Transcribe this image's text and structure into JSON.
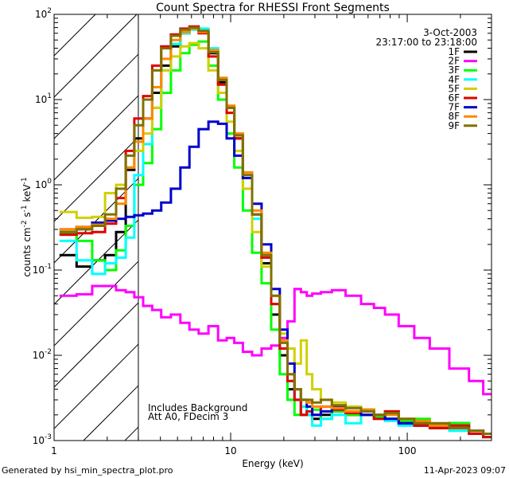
{
  "chart_data": {
    "type": "line",
    "title": "Count Spectra for RHESSI Front Segments",
    "xlabel": "Energy (keV)",
    "ylabel": {
      "base": "counts cm",
      "exp1": "-2",
      "mid1": " s",
      "exp2": "-1",
      "mid2": " keV",
      "exp3": "-1"
    },
    "x_scale": "log",
    "y_scale": "log",
    "xlim": [
      1,
      300
    ],
    "ylim": [
      0.001,
      100
    ],
    "x_ticks": [
      {
        "value": 1,
        "label": "1"
      },
      {
        "value": 10,
        "label": "10"
      },
      {
        "value": 100,
        "label": "100"
      }
    ],
    "y_ticks": [
      {
        "value": 0.001,
        "base": "10",
        "exp": "-3"
      },
      {
        "value": 0.01,
        "base": "10",
        "exp": "-2"
      },
      {
        "value": 0.1,
        "base": "10",
        "exp": "-1"
      },
      {
        "value": 1,
        "base": "10",
        "exp": "0"
      },
      {
        "value": 10,
        "base": "10",
        "exp": "1"
      },
      {
        "value": 100,
        "base": "10",
        "exp": "2"
      }
    ],
    "hatched_region": {
      "x_from": 1,
      "x_to": 3
    },
    "date": "3-Oct-2003",
    "time_range": "23:17:00 to 23:18:00",
    "annotations": [
      "Includes Background",
      "Att A0, FDecim 3"
    ],
    "series": [
      {
        "name": "1F",
        "color": "#000000",
        "x": [
          1.2,
          1.5,
          1.8,
          2.1,
          2.4,
          2.7,
          3.0,
          3.4,
          3.8,
          4.3,
          4.9,
          5.5,
          6.2,
          7.0,
          8.0,
          9.0,
          10,
          11,
          12.5,
          14,
          16,
          18,
          20,
          22,
          24,
          26,
          28,
          30,
          35,
          40,
          50,
          60,
          70,
          80,
          100,
          120,
          150,
          200,
          250,
          290
        ],
        "y": [
          0.15,
          0.11,
          0.13,
          0.15,
          0.28,
          1.5,
          3.5,
          6,
          12,
          25,
          42,
          60,
          70,
          62,
          35,
          16,
          8,
          3.5,
          1.2,
          0.45,
          0.12,
          0.03,
          0.01,
          0.004,
          0.003,
          0.002,
          0.002,
          0.0018,
          0.002,
          0.0022,
          0.002,
          0.0023,
          0.0019,
          0.0018,
          0.0016,
          0.0015,
          0.0015,
          0.0016,
          0.0013,
          0.0011
        ]
      },
      {
        "name": "2F",
        "color": "#ff00ff",
        "x": [
          1.2,
          1.5,
          1.8,
          2.1,
          2.4,
          2.7,
          3.0,
          3.4,
          3.8,
          4.3,
          4.9,
          5.5,
          6.2,
          7.0,
          8.0,
          9.0,
          10,
          11,
          12.5,
          14,
          16,
          18,
          20,
          22,
          24,
          26,
          28,
          30,
          35,
          40,
          50,
          60,
          70,
          80,
          100,
          120,
          150,
          200,
          250,
          290
        ],
        "y": [
          0.05,
          0.052,
          0.065,
          0.065,
          0.058,
          0.055,
          0.048,
          0.038,
          0.034,
          0.028,
          0.03,
          0.024,
          0.02,
          0.018,
          0.022,
          0.015,
          0.016,
          0.014,
          0.011,
          0.01,
          0.012,
          0.013,
          0.016,
          0.025,
          0.06,
          0.055,
          0.05,
          0.053,
          0.055,
          0.058,
          0.05,
          0.04,
          0.036,
          0.03,
          0.022,
          0.016,
          0.012,
          0.007,
          0.005,
          0.0035
        ]
      },
      {
        "name": "3F",
        "color": "#00ff00",
        "x": [
          1.2,
          1.5,
          1.8,
          2.1,
          2.4,
          2.7,
          3.0,
          3.4,
          3.8,
          4.3,
          4.9,
          5.5,
          6.2,
          7.0,
          8.0,
          9.0,
          10,
          11,
          12.5,
          14,
          16,
          18,
          20,
          22,
          24,
          26,
          28,
          30,
          35,
          40,
          50,
          60,
          70,
          80,
          100,
          120,
          150,
          200,
          250,
          290
        ],
        "y": [
          0.27,
          0.22,
          0.13,
          0.1,
          0.17,
          0.33,
          1.0,
          1.8,
          4.5,
          12,
          22,
          35,
          44,
          48,
          25,
          10,
          4,
          1.6,
          0.5,
          0.16,
          0.07,
          0.02,
          0.006,
          0.003,
          0.002,
          0.0025,
          0.002,
          0.0023,
          0.0018,
          0.0022,
          0.002,
          0.0023,
          0.0019,
          0.002,
          0.0017,
          0.0018,
          0.0014,
          0.0016,
          0.0013,
          0.0012
        ]
      },
      {
        "name": "4F",
        "color": "#00ffff",
        "x": [
          1.2,
          1.5,
          1.8,
          2.1,
          2.4,
          2.7,
          3.0,
          3.4,
          3.8,
          4.3,
          4.9,
          5.5,
          6.2,
          7.0,
          8.0,
          9.0,
          10,
          11,
          12.5,
          14,
          16,
          18,
          20,
          22,
          24,
          26,
          28,
          30,
          35,
          40,
          50,
          60,
          70,
          80,
          100,
          120,
          150,
          200,
          250,
          290
        ],
        "y": [
          0.22,
          0.13,
          0.09,
          0.12,
          0.14,
          0.24,
          1.3,
          3,
          8,
          22,
          45,
          60,
          66,
          68,
          40,
          18,
          8,
          4,
          1.3,
          0.4,
          0.15,
          0.04,
          0.012,
          0.005,
          0.003,
          0.0025,
          0.002,
          0.0015,
          0.0018,
          0.002,
          0.0016,
          0.002,
          0.0018,
          0.0017,
          0.0015,
          0.0016,
          0.0014,
          0.0013,
          0.0012,
          0.0011
        ]
      },
      {
        "name": "5F",
        "color": "#d0d000",
        "x": [
          1.2,
          1.5,
          1.8,
          2.1,
          2.4,
          2.7,
          3.0,
          3.4,
          3.8,
          4.3,
          4.9,
          5.5,
          6.2,
          7.0,
          8.0,
          9.0,
          10,
          11,
          12.5,
          14,
          16,
          18,
          20,
          22,
          24,
          26,
          28,
          30,
          35,
          40,
          50,
          60,
          70,
          80,
          100,
          120,
          150,
          200,
          250,
          290
        ],
        "y": [
          0.48,
          0.41,
          0.42,
          0.8,
          1.0,
          1.6,
          2.5,
          4,
          8,
          22,
          32,
          42,
          46,
          40,
          22,
          12,
          5.5,
          2.5,
          0.9,
          0.28,
          0.11,
          0.04,
          0.018,
          0.012,
          0.008,
          0.015,
          0.006,
          0.004,
          0.003,
          0.0028,
          0.0025,
          0.0022,
          0.002,
          0.0022,
          0.0018,
          0.0016,
          0.0015,
          0.0014,
          0.0013,
          0.0012
        ]
      },
      {
        "name": "6F",
        "color": "#e00000",
        "x": [
          1.2,
          1.5,
          1.8,
          2.1,
          2.4,
          2.7,
          3.0,
          3.4,
          3.8,
          4.3,
          4.9,
          5.5,
          6.2,
          7.0,
          8.0,
          9.0,
          10,
          11,
          12.5,
          14,
          16,
          18,
          20,
          22,
          24,
          26,
          28,
          30,
          35,
          40,
          50,
          60,
          70,
          80,
          100,
          120,
          150,
          200,
          250,
          290
        ],
        "y": [
          0.26,
          0.27,
          0.28,
          0.35,
          0.7,
          2.5,
          6,
          11,
          25,
          42,
          58,
          68,
          72,
          60,
          32,
          15,
          7,
          3.5,
          1.2,
          0.45,
          0.14,
          0.04,
          0.012,
          0.005,
          0.003,
          0.002,
          0.0022,
          0.002,
          0.0025,
          0.0023,
          0.0021,
          0.002,
          0.0018,
          0.0022,
          0.0016,
          0.0015,
          0.0014,
          0.0015,
          0.0012,
          0.0011
        ]
      },
      {
        "name": "7F",
        "color": "#0000cc",
        "x": [
          1.2,
          1.5,
          1.8,
          2.1,
          2.4,
          2.7,
          3.0,
          3.4,
          3.8,
          4.3,
          4.9,
          5.5,
          6.2,
          7.0,
          8.0,
          9.0,
          10,
          11,
          12.5,
          14,
          16,
          18,
          20,
          22,
          24,
          26,
          28,
          30,
          35,
          40,
          50,
          60,
          70,
          80,
          100,
          120,
          150,
          200,
          250,
          290
        ],
        "y": [
          0.3,
          0.32,
          0.36,
          0.38,
          0.4,
          0.42,
          0.44,
          0.46,
          0.5,
          0.62,
          0.9,
          1.6,
          2.8,
          4.5,
          5.5,
          5.2,
          3.5,
          2.2,
          1.2,
          0.6,
          0.2,
          0.06,
          0.02,
          0.008,
          0.004,
          0.003,
          0.0025,
          0.002,
          0.0022,
          0.0025,
          0.0022,
          0.002,
          0.002,
          0.0018,
          0.0016,
          0.0016,
          0.0015,
          0.0014,
          0.0013,
          0.0012
        ]
      },
      {
        "name": "8F",
        "color": "#ff8800",
        "x": [
          1.2,
          1.5,
          1.8,
          2.1,
          2.4,
          2.7,
          3.0,
          3.4,
          3.8,
          4.3,
          4.9,
          5.5,
          6.2,
          7.0,
          8.0,
          9.0,
          10,
          11,
          12.5,
          14,
          16,
          18,
          20,
          22,
          24,
          26,
          28,
          30,
          35,
          40,
          50,
          60,
          70,
          80,
          100,
          120,
          150,
          200,
          250,
          290
        ],
        "y": [
          0.3,
          0.32,
          0.34,
          0.4,
          0.6,
          1.6,
          3.2,
          6,
          14,
          30,
          50,
          62,
          68,
          62,
          38,
          18,
          8.5,
          4,
          1.4,
          0.5,
          0.16,
          0.05,
          0.015,
          0.006,
          0.004,
          0.003,
          0.0028,
          0.0025,
          0.0025,
          0.0024,
          0.0022,
          0.0023,
          0.002,
          0.002,
          0.0018,
          0.0017,
          0.0015,
          0.0014,
          0.0013,
          0.0012
        ]
      },
      {
        "name": "9F",
        "color": "#807000",
        "x": [
          1.2,
          1.5,
          1.8,
          2.1,
          2.4,
          2.7,
          3.0,
          3.4,
          3.8,
          4.3,
          4.9,
          5.5,
          6.2,
          7.0,
          8.0,
          9.0,
          10,
          11,
          12.5,
          14,
          16,
          18,
          20,
          22,
          24,
          26,
          28,
          30,
          35,
          40,
          50,
          60,
          70,
          80,
          100,
          120,
          150,
          200,
          250,
          290
        ],
        "y": [
          0.28,
          0.3,
          0.33,
          0.45,
          0.9,
          2.2,
          5,
          10,
          22,
          40,
          56,
          66,
          70,
          64,
          36,
          17,
          8,
          3.8,
          1.3,
          0.45,
          0.15,
          0.05,
          0.014,
          0.006,
          0.004,
          0.003,
          0.003,
          0.0028,
          0.003,
          0.0026,
          0.0024,
          0.0022,
          0.002,
          0.0021,
          0.0018,
          0.0016,
          0.0016,
          0.0014,
          0.0013,
          0.0012
        ]
      }
    ]
  },
  "footer": {
    "generated_by": "Generated by hsi_min_spectra_plot.pro",
    "timestamp": "11-Apr-2023 09:07"
  }
}
